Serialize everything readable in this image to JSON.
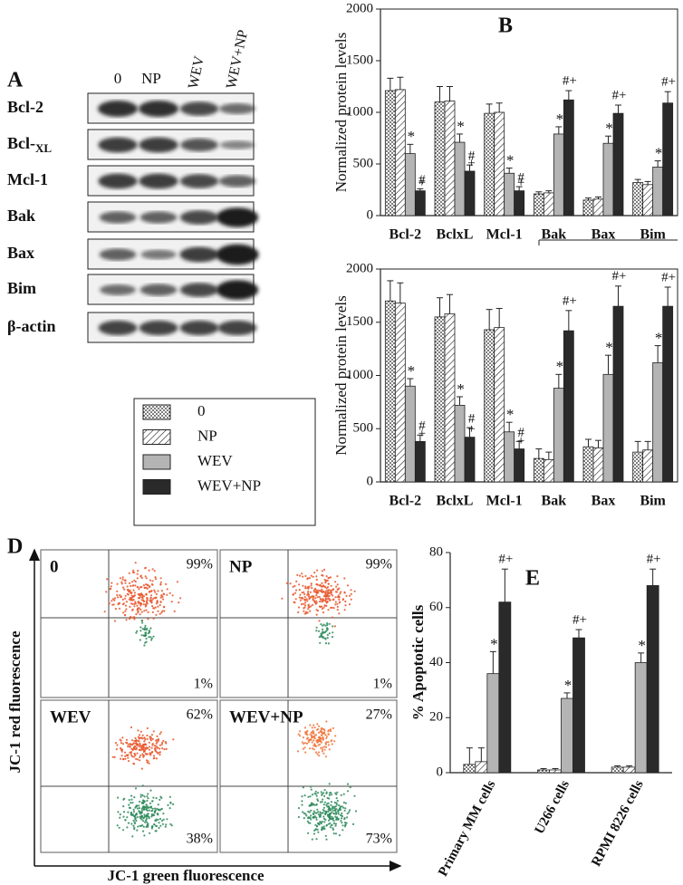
{
  "panel_labels": [
    "A",
    "D"
  ],
  "blot": {
    "columns": [
      "0",
      "NP",
      "WEV",
      "WEV+NP"
    ],
    "rows": [
      {
        "label": "Bcl-2"
      },
      {
        "label": "Bcl-",
        "sub": "XL"
      },
      {
        "label": "Mcl-1"
      },
      {
        "label": "Bak"
      },
      {
        "label": "Bax"
      },
      {
        "label": "Bim"
      },
      {
        "label": "β-actin"
      }
    ]
  },
  "flow": {
    "y_label": "JC-1 red fluorescence",
    "x_label": "JC-1 green fluorescence",
    "panels": [
      {
        "label": "0",
        "upper": "99%",
        "lower": "1%"
      },
      {
        "label": "NP",
        "upper": "99%",
        "lower": "1%"
      },
      {
        "label": "WEV",
        "upper": "62%",
        "lower": "38%"
      },
      {
        "label": "WEV+NP",
        "upper": "27%",
        "lower": "73%"
      }
    ]
  },
  "chart_data": [
    {
      "type": "bar",
      "title": "B",
      "y_label": "Normalized protein levels",
      "frame": true,
      "categories": [
        "Bcl-2",
        "BclxL",
        "Mcl-1",
        "Bak",
        "Bax",
        "Bim"
      ],
      "ylim": [
        0,
        2000
      ],
      "yticks": [
        0,
        500,
        1000,
        1500,
        2000
      ],
      "series": [
        {
          "name": "0",
          "pattern": "dots",
          "color": "#ffffff",
          "values": [
            1210,
            1100,
            990,
            210,
            150,
            320
          ],
          "errors": [
            120,
            150,
            90,
            20,
            20,
            30
          ],
          "annotations": [
            null,
            null,
            null,
            null,
            null,
            null
          ]
        },
        {
          "name": "NP",
          "pattern": "hatch",
          "color": "#ffffff",
          "values": [
            1220,
            1110,
            1000,
            220,
            160,
            300
          ],
          "errors": [
            120,
            140,
            90,
            20,
            20,
            30
          ],
          "annotations": [
            null,
            null,
            null,
            null,
            null,
            null
          ]
        },
        {
          "name": "WEV",
          "pattern": "solid",
          "color": "#b4b4b4",
          "values": [
            600,
            710,
            410,
            790,
            700,
            470
          ],
          "errors": [
            90,
            80,
            50,
            70,
            70,
            60
          ],
          "annotations": [
            "*",
            "*",
            "*",
            "*",
            "*",
            "*"
          ]
        },
        {
          "name": "WEV+NP",
          "pattern": "solid",
          "color": "#2a2a2a",
          "values": [
            240,
            430,
            240,
            1120,
            990,
            1090
          ],
          "errors": [
            20,
            60,
            40,
            90,
            80,
            110
          ],
          "annotations": [
            [
              "#",
              "+"
            ],
            [
              "#",
              "+"
            ],
            [
              "#",
              "+"
            ],
            "#+",
            "#+",
            "#+"
          ]
        }
      ]
    },
    {
      "type": "bar",
      "y_label": "Normalized protein levels",
      "frame": true,
      "categories": [
        "Bcl-2",
        "BclxL",
        "Mcl-1",
        "Bak",
        "Bax",
        "Bim"
      ],
      "ylim": [
        0,
        2000
      ],
      "yticks": [
        0,
        500,
        1000,
        1500,
        2000
      ],
      "series": [
        {
          "pattern": "dots",
          "color": "#ffffff",
          "values": [
            1700,
            1550,
            1430,
            220,
            330,
            280
          ],
          "errors": [
            190,
            180,
            190,
            90,
            70,
            100
          ],
          "annotations": [
            null,
            null,
            null,
            null,
            null,
            null
          ]
        },
        {
          "pattern": "hatch",
          "color": "#ffffff",
          "values": [
            1680,
            1580,
            1450,
            210,
            320,
            300
          ],
          "errors": [
            190,
            180,
            180,
            70,
            70,
            80
          ],
          "annotations": [
            null,
            null,
            null,
            null,
            null,
            null
          ]
        },
        {
          "pattern": "solid",
          "color": "#b4b4b4",
          "values": [
            900,
            720,
            470,
            880,
            1010,
            1120
          ],
          "errors": [
            70,
            80,
            90,
            130,
            180,
            160
          ],
          "annotations": [
            "*",
            "*",
            "*",
            "*",
            "*",
            "*"
          ]
        },
        {
          "pattern": "solid",
          "color": "#2a2a2a",
          "values": [
            380,
            420,
            310,
            1420,
            1650,
            1650
          ],
          "errors": [
            60,
            90,
            70,
            190,
            190,
            180
          ],
          "annotations": [
            [
              "#",
              "+"
            ],
            [
              "#",
              "+"
            ],
            [
              "#",
              "+"
            ],
            "#+",
            "#+",
            "#+"
          ]
        }
      ]
    },
    {
      "type": "bar",
      "title": "E",
      "y_label": "% Apoptotic cells",
      "frame": false,
      "categories": [
        "Primary MM cells",
        "U266 cells",
        "RPMI 8226 cells"
      ],
      "ylim": [
        0,
        80
      ],
      "yticks": [
        0,
        20,
        40,
        60,
        80
      ],
      "series": [
        {
          "pattern": "dots",
          "color": "#ffffff",
          "values": [
            3,
            1,
            2
          ],
          "errors": [
            6,
            0.5,
            0.5
          ],
          "annotations": [
            null,
            null,
            null
          ]
        },
        {
          "pattern": "hatch",
          "color": "#ffffff",
          "values": [
            4,
            1,
            2
          ],
          "errors": [
            5,
            0.5,
            0.5
          ],
          "annotations": [
            null,
            null,
            null
          ]
        },
        {
          "pattern": "solid",
          "color": "#b4b4b4",
          "values": [
            36,
            27,
            40
          ],
          "errors": [
            8,
            2,
            3.5
          ],
          "annotations": [
            "*",
            "*",
            "*"
          ]
        },
        {
          "pattern": "solid",
          "color": "#2a2a2a",
          "values": [
            62,
            49,
            68
          ],
          "errors": [
            12,
            3,
            6
          ],
          "annotations": [
            "#+",
            "#+",
            "#+"
          ]
        }
      ]
    }
  ]
}
